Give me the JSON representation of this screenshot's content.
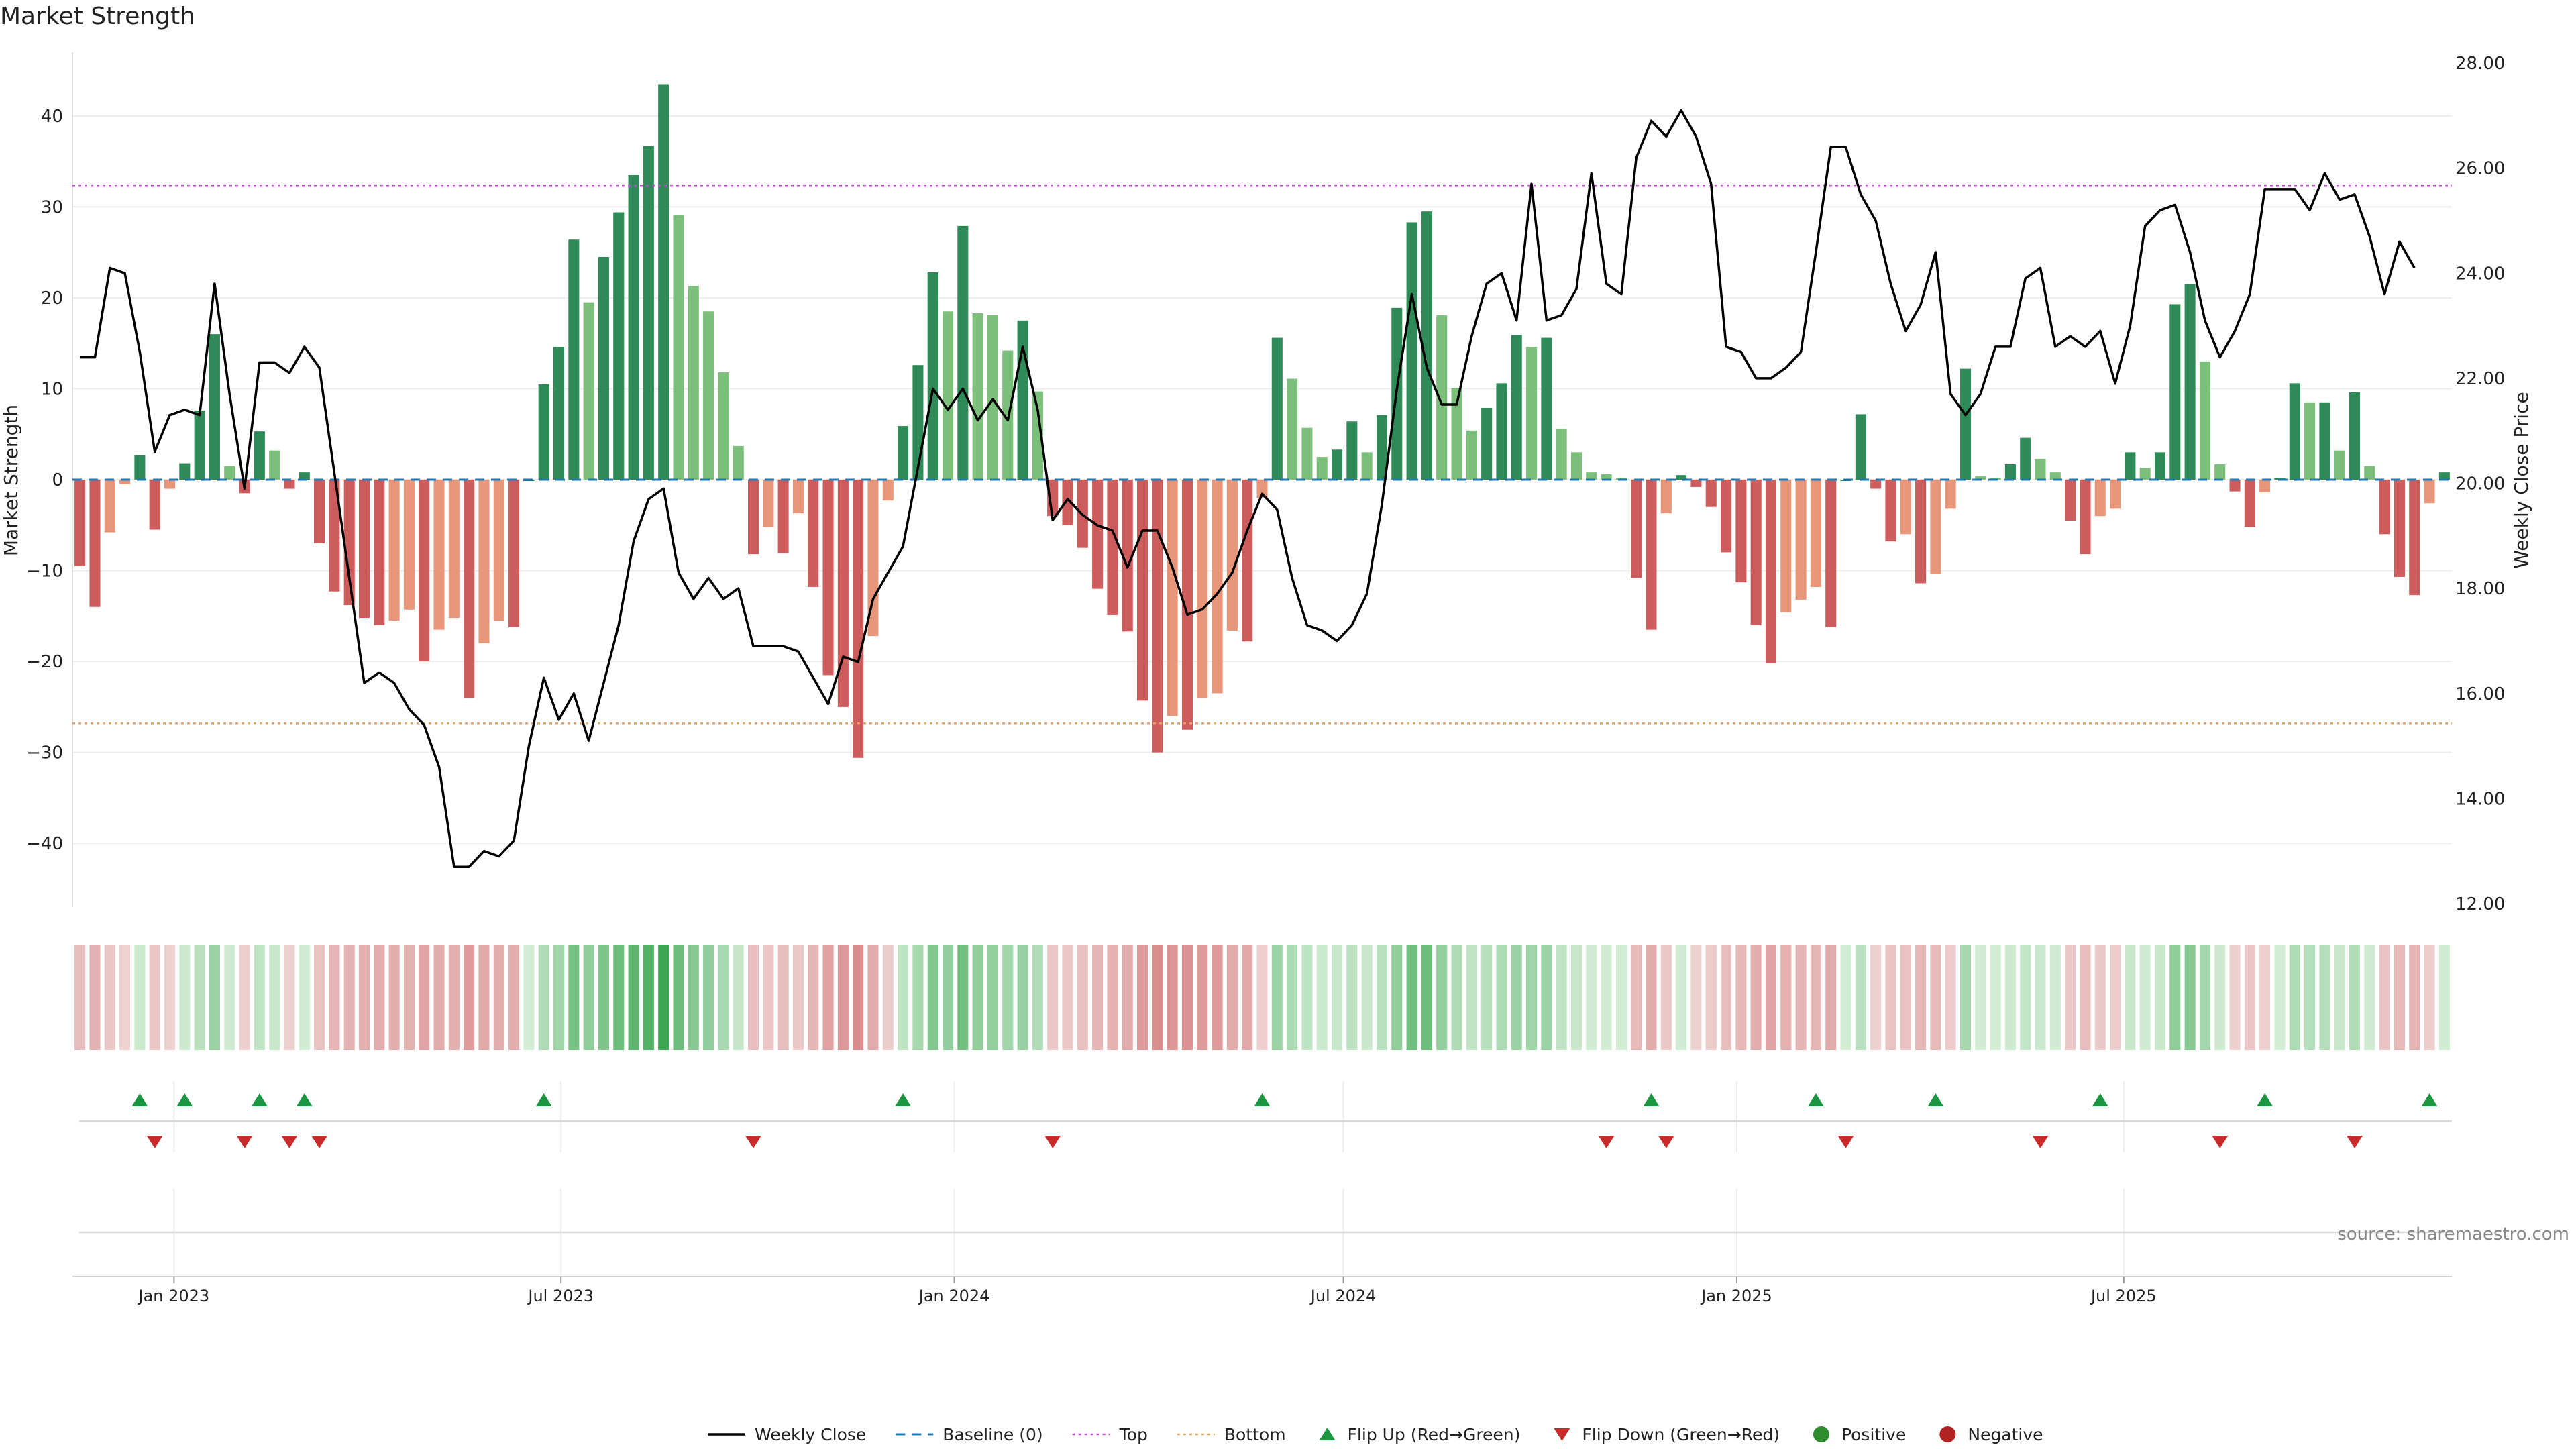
{
  "title": "Market Strength",
  "source": "source: sharemaestro.com",
  "colors": {
    "strong_green": "#2e8b57",
    "light_green": "#7bbf7b",
    "strong_red": "#cd5c5c",
    "light_red": "#e8967a",
    "weekly_close": "#000000",
    "baseline": "#1f77b4",
    "top": "#c04ad0",
    "bottom": "#e8a35a",
    "flip_up": "#1a9641",
    "flip_down": "#c92a2a",
    "positive": "#2e8b2e",
    "negative": "#b22222"
  },
  "legend": [
    {
      "label": "Weekly Close",
      "kind": "line",
      "color": "#000000"
    },
    {
      "label": "Baseline (0)",
      "kind": "dash",
      "color": "#1f77b4"
    },
    {
      "label": "Top",
      "kind": "dot",
      "color": "#c04ad0"
    },
    {
      "label": "Bottom",
      "kind": "dot",
      "color": "#e8a35a"
    },
    {
      "label": "Flip Up (Red→Green)",
      "kind": "tri-up",
      "color": "#1a9641"
    },
    {
      "label": "Flip Down (Green→Red)",
      "kind": "tri-down",
      "color": "#c92a2a"
    },
    {
      "label": "Positive",
      "kind": "dot-marker",
      "color": "#2e8b2e"
    },
    {
      "label": "Negative",
      "kind": "dot-marker",
      "color": "#b22222"
    }
  ],
  "chart_data": {
    "type": "bar",
    "title": "Market Strength",
    "x_start_date": "2022-11-18",
    "x_step_days": 7,
    "xticks": [
      "Jan 2023",
      "Jul 2023",
      "Jan 2024",
      "Jul 2024",
      "Jan 2025",
      "Jul 2025"
    ],
    "xtick_dates": [
      "2023-01-01",
      "2023-07-01",
      "2024-01-01",
      "2024-07-01",
      "2025-01-01",
      "2025-07-01"
    ],
    "y_left": {
      "label": "Market Strength",
      "range": [
        -47,
        47
      ],
      "ticks": [
        -40,
        -30,
        -20,
        -10,
        0,
        10,
        20,
        30,
        40
      ]
    },
    "y_right": {
      "label": "Weekly Close Price",
      "range": [
        12,
        28
      ],
      "ticks": [
        "12.00",
        "14.00",
        "16.00",
        "18.00",
        "20.00",
        "22.00",
        "24.00",
        "26.00",
        "28.00"
      ]
    },
    "top_line": 32.3,
    "bottom_line": -26.8,
    "grid": true,
    "legend_position": "bottom-center",
    "strength": [
      -9.5,
      -14,
      -5.8,
      -0.5,
      2.7,
      -5.5,
      -1,
      1.8,
      7.6,
      16,
      1.5,
      -1.5,
      5.3,
      3.2,
      -1,
      0.8,
      -7,
      -12.3,
      -13.8,
      -15.2,
      -16,
      -15.5,
      -14.3,
      -20,
      -16.5,
      -15.2,
      -24,
      -18,
      -15.5,
      -16.2,
      0,
      10.5,
      14.6,
      26.4,
      19.5,
      24.5,
      29.4,
      33.5,
      36.7,
      43.5,
      29.1,
      21.3,
      18.5,
      11.8,
      3.7,
      -8.2,
      -5.2,
      -8.1,
      -3.7,
      -11.8,
      -21.5,
      -25,
      -30.6,
      -17.2,
      -2.3,
      5.9,
      12.6,
      22.8,
      18.5,
      27.9,
      18.3,
      18.1,
      14.2,
      17.5,
      9.7,
      -4,
      -5,
      -7.5,
      -12,
      -14.9,
      -16.7,
      -24.3,
      -30,
      -26,
      -27.5,
      -24,
      -23.5,
      -16.6,
      -17.8,
      -2,
      15.6,
      11.1,
      5.7,
      2.5,
      3.3,
      6.4,
      3,
      7.1,
      18.9,
      28.3,
      29.5,
      18.1,
      10.1,
      5.4,
      7.9,
      10.6,
      15.9,
      14.6,
      15.6,
      5.6,
      3,
      0.8,
      0.6,
      0.2,
      -10.8,
      -16.5,
      -3.7,
      0.5,
      -0.8,
      -3,
      -8,
      -11.3,
      -16,
      -20.2,
      -14.6,
      -13.2,
      -11.8,
      -16.2,
      0,
      7.2,
      -1,
      -6.8,
      -6,
      -11.4,
      -10.4,
      -3.2,
      12.2,
      0.4,
      0.2,
      1.7,
      4.6,
      2.3,
      0.8,
      -4.5,
      -8.2,
      -4,
      -3.2,
      3,
      1.3,
      3,
      19.3,
      21.5,
      13,
      1.7,
      -1.3,
      -5.2,
      -1.4,
      0.2,
      10.6,
      8.5,
      8.5,
      3.2,
      9.6,
      1.5,
      -6,
      -10.7,
      -12.7,
      -2.6,
      0.8
    ],
    "weekly_close": [
      22.4,
      22.4,
      24.1,
      24,
      22.5,
      20.6,
      21.3,
      21.4,
      21.3,
      23.8,
      21.7,
      19.9,
      22.3,
      22.3,
      22.1,
      22.6,
      22.2,
      20.2,
      18.2,
      16.2,
      16.4,
      16.2,
      15.7,
      15.4,
      14.6,
      12.7,
      12.7,
      13,
      12.9,
      13.2,
      15,
      16.3,
      15.5,
      16,
      15.1,
      16.2,
      17.3,
      18.9,
      19.7,
      19.9,
      18.3,
      17.8,
      18.2,
      17.8,
      18,
      16.9,
      16.9,
      16.9,
      16.8,
      16.3,
      15.8,
      16.7,
      16.6,
      17.8,
      18.3,
      18.8,
      20.3,
      21.8,
      21.4,
      21.8,
      21.2,
      21.6,
      21.2,
      22.6,
      21.4,
      19.3,
      19.7,
      19.4,
      19.2,
      19.1,
      18.4,
      19.1,
      19.1,
      18.4,
      17.5,
      17.6,
      17.9,
      18.3,
      19.1,
      19.8,
      19.5,
      18.2,
      17.3,
      17.2,
      17,
      17.3,
      17.9,
      19.6,
      21.8,
      23.6,
      22.2,
      21.5,
      21.5,
      22.8,
      23.8,
      24,
      23.1,
      25.7,
      23.1,
      23.2,
      23.7,
      25.9,
      23.8,
      23.6,
      26.2,
      26.9,
      26.6,
      27.1,
      26.6,
      25.7,
      22.6,
      22.5,
      22,
      22,
      22.2,
      22.5,
      24.4,
      26.4,
      26.4,
      25.5,
      25,
      23.8,
      22.9,
      23.4,
      24.4,
      21.7,
      21.3,
      21.7,
      22.6,
      22.6,
      23.9,
      24.1,
      22.6,
      22.8,
      22.6,
      22.9,
      21.9,
      23,
      24.9,
      25.2,
      25.3,
      24.4,
      23.1,
      22.4,
      22.9,
      23.6,
      25.6,
      25.6,
      25.6,
      25.2,
      25.9,
      25.4,
      25.5,
      24.7,
      23.6,
      24.6,
      24.1
    ],
    "flip_up_weeks": [
      4,
      7,
      12,
      15,
      31,
      55,
      79,
      105,
      116,
      124,
      135,
      146,
      157
    ],
    "flip_down_weeks": [
      5,
      11,
      14,
      16,
      45,
      65,
      102,
      106,
      118,
      131,
      143,
      152
    ],
    "tiles": "strength of each weekly value, shaded green (positive) or red (negative)"
  }
}
